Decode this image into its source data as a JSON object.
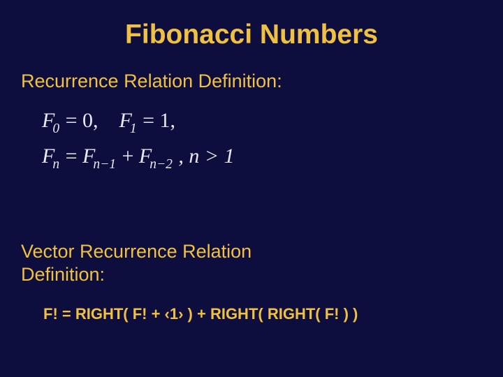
{
  "slide": {
    "title": "Fibonacci Numbers",
    "subhead1": "Recurrence Relation Definition:",
    "subhead2_line1": "Vector Recurrence Relation",
    "subhead2_line2": "Definition:",
    "math": {
      "line1": {
        "F": "F",
        "sub0": "0",
        "eq0": " = 0,",
        "spacer": "    ",
        "F2": "F",
        "sub1": "1",
        "eq1": " = 1,"
      },
      "line2": {
        "F": "F",
        "subn": "n",
        "eq": " = ",
        "F1": "F",
        "subnm1": "n−1",
        "plus": " + ",
        "F2": "F",
        "subnm2": "n−2",
        "tail": " , n > 1"
      }
    },
    "formula": "F! = RIGHT( F! + ‹1› ) + RIGHT( RIGHT( F! ) )"
  },
  "style": {
    "background_color": "#0e0e3e",
    "accent_color": "#f0c040",
    "math_color": "#e8e8f0",
    "title_fontsize_pt": 30,
    "subhead_fontsize_pt": 20,
    "math_fontsize_pt": 22,
    "formula_fontsize_pt": 17,
    "font_family_display": "Comic Sans MS",
    "font_family_math": "Georgia / Times"
  },
  "type": "slide"
}
